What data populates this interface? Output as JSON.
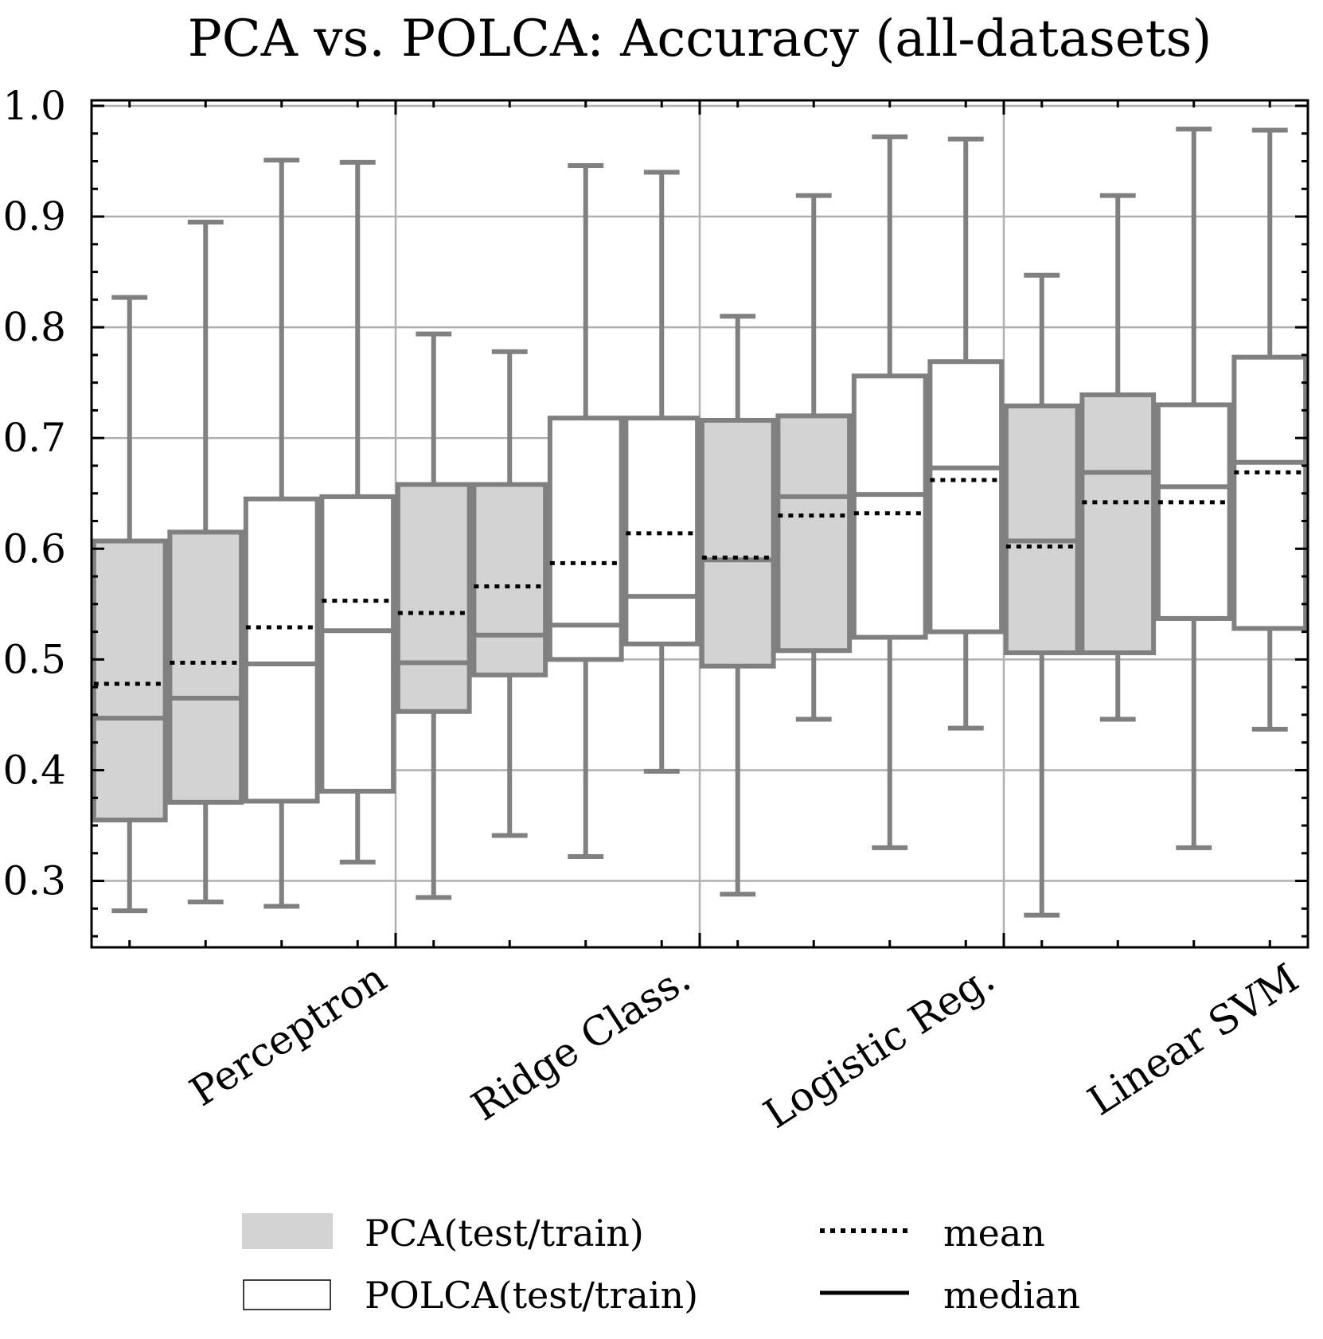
{
  "chart_data": {
    "type": "box",
    "title": "PCA vs. POLCA: Accuracy (all-datasets)",
    "xlabel": "",
    "ylabel": "",
    "ylim": [
      0.24,
      1.005
    ],
    "yticks": [
      0.3,
      0.4,
      0.5,
      0.6,
      0.7,
      0.8,
      0.9,
      1.0
    ],
    "ytick_labels": [
      "0.3",
      "0.4",
      "0.5",
      "0.6",
      "0.7",
      "0.8",
      "0.9",
      "1.0"
    ],
    "grid": true,
    "categories": [
      "Perceptron",
      "Ridge Class.",
      "Logistic Reg.",
      "Linear SVM"
    ],
    "series": [
      {
        "name": "PCA(test)",
        "group": "PCA",
        "fill": "#d3d3d3",
        "boxes": [
          {
            "whislo": 0.273,
            "q1": 0.355,
            "median": 0.447,
            "q3": 0.607,
            "whishi": 0.827,
            "mean": 0.478
          },
          {
            "whislo": 0.285,
            "q1": 0.453,
            "median": 0.497,
            "q3": 0.658,
            "whishi": 0.794,
            "mean": 0.542
          },
          {
            "whislo": 0.288,
            "q1": 0.494,
            "median": 0.59,
            "q3": 0.716,
            "whishi": 0.81,
            "mean": 0.592
          },
          {
            "whislo": 0.269,
            "q1": 0.506,
            "median": 0.607,
            "q3": 0.729,
            "whishi": 0.847,
            "mean": 0.602
          }
        ]
      },
      {
        "name": "PCA(train)",
        "group": "PCA",
        "fill": "#d3d3d3",
        "boxes": [
          {
            "whislo": 0.281,
            "q1": 0.371,
            "median": 0.465,
            "q3": 0.615,
            "whishi": 0.895,
            "mean": 0.497
          },
          {
            "whislo": 0.341,
            "q1": 0.486,
            "median": 0.522,
            "q3": 0.658,
            "whishi": 0.778,
            "mean": 0.566
          },
          {
            "whislo": 0.446,
            "q1": 0.508,
            "median": 0.647,
            "q3": 0.72,
            "whishi": 0.919,
            "mean": 0.63
          },
          {
            "whislo": 0.446,
            "q1": 0.506,
            "median": 0.669,
            "q3": 0.739,
            "whishi": 0.919,
            "mean": 0.642
          }
        ]
      },
      {
        "name": "POLCA(test)",
        "group": "POLCA",
        "fill": "#ffffff",
        "boxes": [
          {
            "whislo": 0.277,
            "q1": 0.372,
            "median": 0.496,
            "q3": 0.645,
            "whishi": 0.951,
            "mean": 0.529
          },
          {
            "whislo": 0.322,
            "q1": 0.5,
            "median": 0.531,
            "q3": 0.718,
            "whishi": 0.946,
            "mean": 0.587
          },
          {
            "whislo": 0.33,
            "q1": 0.52,
            "median": 0.649,
            "q3": 0.756,
            "whishi": 0.972,
            "mean": 0.632
          },
          {
            "whislo": 0.33,
            "q1": 0.537,
            "median": 0.656,
            "q3": 0.73,
            "whishi": 0.979,
            "mean": 0.642
          }
        ]
      },
      {
        "name": "POLCA(train)",
        "group": "POLCA",
        "fill": "#ffffff",
        "boxes": [
          {
            "whislo": 0.317,
            "q1": 0.381,
            "median": 0.526,
            "q3": 0.647,
            "whishi": 0.949,
            "mean": 0.553
          },
          {
            "whislo": 0.399,
            "q1": 0.514,
            "median": 0.557,
            "q3": 0.718,
            "whishi": 0.94,
            "mean": 0.614
          },
          {
            "whislo": 0.438,
            "q1": 0.525,
            "median": 0.673,
            "q3": 0.769,
            "whishi": 0.97,
            "mean": 0.662
          },
          {
            "whislo": 0.437,
            "q1": 0.528,
            "median": 0.678,
            "q3": 0.773,
            "whishi": 0.978,
            "mean": 0.669
          }
        ]
      }
    ],
    "legend": {
      "placement": "bottom",
      "entries": [
        {
          "label": "PCA(test/train)",
          "kind": "patch",
          "fill": "#d3d3d3"
        },
        {
          "label": "POLCA(test/train)",
          "kind": "patch",
          "fill": "#ffffff"
        },
        {
          "label": "mean",
          "kind": "dotted-line"
        },
        {
          "label": "median",
          "kind": "solid-line"
        }
      ]
    },
    "colors": {
      "box_edge": "#808080",
      "grid": "#b0b0b0",
      "axis": "#000000",
      "mean_line": "#000000"
    }
  }
}
